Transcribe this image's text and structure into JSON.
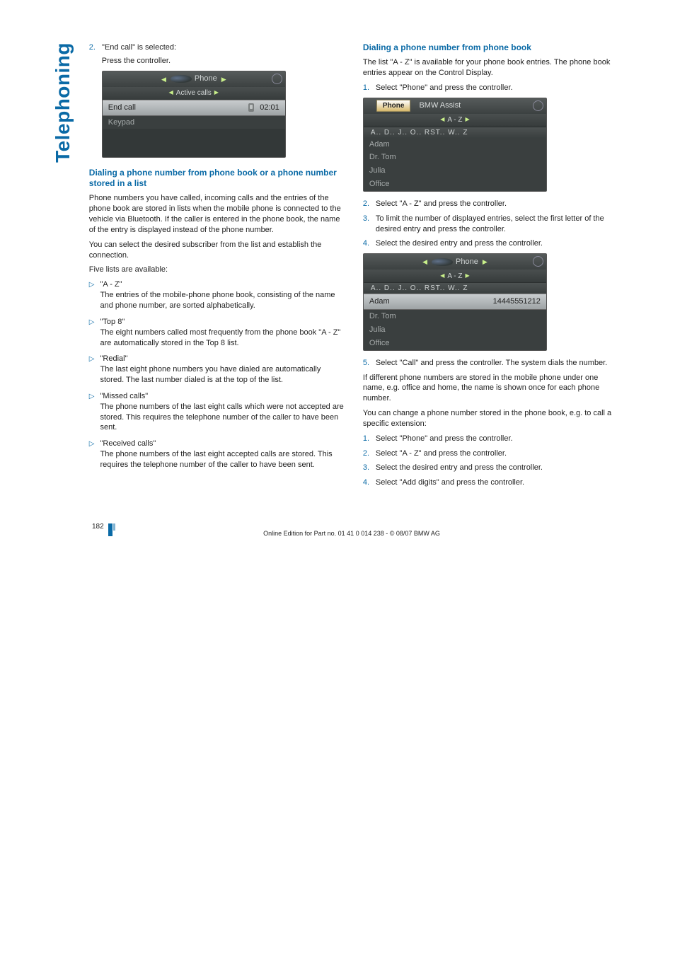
{
  "sideTab": "Telephoning",
  "left": {
    "step2_label": "2.",
    "step2_text": "\"End call\" is selected:",
    "step2_text2": "Press the controller.",
    "screenshot1": {
      "header_label": "Phone",
      "sub_label": "Active calls",
      "selected": "End call",
      "right_val": "02:01",
      "row2": "Keypad"
    },
    "heading1": "Dialing a phone number from phone book or a phone number stored in a list",
    "para1": "Phone numbers you have called, incoming calls and the entries of the phone book are stored in lists when the mobile phone is connected to the vehicle via Bluetooth. If the caller is entered in the phone book, the name of the entry is displayed instead of the phone number.",
    "para1b": "You can select the desired subscriber from the list and establish the connection.",
    "para2": "Five lists are available:",
    "bullets": [
      {
        "title": "\"A - Z\"",
        "body": "The entries of the mobile-phone phone book, consisting of the name and phone number, are sorted alphabetically."
      },
      {
        "title": "\"Top 8\"",
        "body": "The eight numbers called most frequently from the phone book \"A - Z\" are automatically stored in the Top 8 list."
      },
      {
        "title": "\"Redial\"",
        "body": "The last eight phone numbers you have dialed are automatically stored. The last number dialed is at the top of the list."
      },
      {
        "title": "\"Missed calls\"",
        "body": "The phone numbers of the last eight calls which were not accepted are stored. This requires the telephone number of the caller to have been sent."
      },
      {
        "title": "\"Received calls\"",
        "body": "The phone numbers of the last eight accepted calls are stored. This requires the telephone number of the caller to have been sent."
      }
    ]
  },
  "right": {
    "heading1": "Dialing a phone number from phone book",
    "para1": "The list \"A - Z\" is available for your phone book entries. The phone book entries appear on the Control Display.",
    "steps1": [
      "Select \"Phone\" and press the controller."
    ],
    "screenshot2": {
      "tab_left": "Phone",
      "tab_right": "BMW Assist",
      "sub_label": "A - Z",
      "alpha": "A.. D.. J.. O.. RST.. W.. Z",
      "rows": [
        "Adam",
        "Dr. Tom",
        "Julia",
        "Office"
      ]
    },
    "steps2": [
      "Select \"A - Z\" and press the controller.",
      "To limit the number of displayed entries, select the first letter of the desired entry and press the controller.",
      "Select the desired entry and press the controller."
    ],
    "screenshot3": {
      "header_label": "Phone",
      "sub_label": "A - Z",
      "alpha": "A.. D.. J.. O.. RST.. W.. Z",
      "selected": "Adam",
      "selected_val": "14445551212",
      "rows": [
        "Dr. Tom",
        "Julia",
        "Office"
      ]
    },
    "steps3": [
      "Select \"Call\" and press the controller. The system dials the number."
    ],
    "para2": "If different phone numbers are stored in the mobile phone under one name, e.g. office and home, the name is shown once for each phone number.",
    "para3": "You can change a phone number stored in the phone book, e.g. to call a specific extension:",
    "steps4": [
      "Select \"Phone\" and press the controller.",
      "Select \"A - Z\" and press the controller.",
      "Select the desired entry and press the controller.",
      "Select \"Add digits\" and press the controller."
    ]
  },
  "footer": {
    "page": "182",
    "line": "Online Edition for Part no. 01 41 0 014 238 - © 08/07 BMW AG"
  }
}
